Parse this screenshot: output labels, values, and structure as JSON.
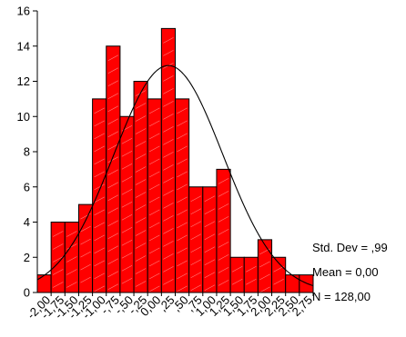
{
  "chart_data": {
    "type": "bar",
    "subtype": "histogram",
    "title": "",
    "xlabel": "",
    "ylabel": "",
    "ylim": [
      0,
      16
    ],
    "yticks": [
      "0",
      "2",
      "4",
      "6",
      "8",
      "10",
      "12",
      "14",
      "16"
    ],
    "xticks": [
      "-2,00",
      "-1,75",
      "-1,50",
      "-1,25",
      "-1,00",
      "-,75",
      "-,50",
      "-,25",
      "0,00",
      ",25",
      ",50",
      ",75",
      "1,00",
      "1,25",
      "1,50",
      "1,75",
      "2,00",
      "2,25",
      "2,50",
      "2,75"
    ],
    "bin_width": 0.25,
    "bins": [
      {
        "center": -2.25,
        "value": 1
      },
      {
        "center": -2.0,
        "value": 4
      },
      {
        "center": -1.75,
        "value": 4
      },
      {
        "center": -1.5,
        "value": 5
      },
      {
        "center": -1.25,
        "value": 11
      },
      {
        "center": -1.0,
        "value": 14
      },
      {
        "center": -0.75,
        "value": 10
      },
      {
        "center": -0.5,
        "value": 12
      },
      {
        "center": -0.25,
        "value": 11
      },
      {
        "center": 0.0,
        "value": 15
      },
      {
        "center": 0.25,
        "value": 11
      },
      {
        "center": 0.5,
        "value": 6
      },
      {
        "center": 0.75,
        "value": 6
      },
      {
        "center": 1.0,
        "value": 7
      },
      {
        "center": 1.25,
        "value": 2
      },
      {
        "center": 1.5,
        "value": 2
      },
      {
        "center": 1.75,
        "value": 3
      },
      {
        "center": 2.0,
        "value": 2
      },
      {
        "center": 2.25,
        "value": 1
      },
      {
        "center": 2.5,
        "value": 1
      }
    ],
    "normal_curve": {
      "mean": 0.0,
      "std_dev": 0.99,
      "n": 128
    },
    "bar_color": "#ff0000",
    "edge_color": "#000000",
    "grid": false,
    "stats": [
      "Std. Dev = ,99",
      "Mean = 0,00",
      "N = 128,00"
    ]
  }
}
